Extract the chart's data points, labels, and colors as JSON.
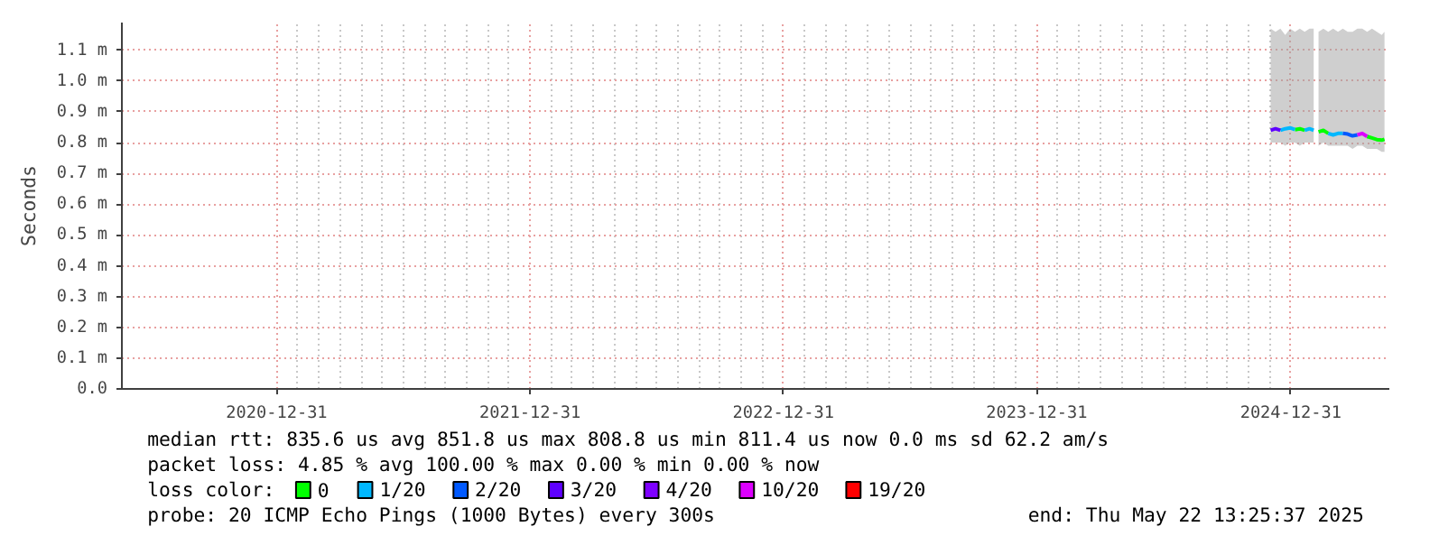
{
  "chart_data": {
    "type": "line",
    "ylabel": "Seconds",
    "legend_title": "loss color:",
    "legend": "bottom",
    "grid": true,
    "marker": "none",
    "line_style": "solid",
    "xlim": [
      "2020-05-22",
      "2025-05-22"
    ],
    "xticks": [
      "2020-12-31",
      "2021-12-31",
      "2022-12-31",
      "2023-12-31",
      "2024-12-31"
    ],
    "ylim": [
      0,
      1.19
    ],
    "yticks": [
      {
        "value": 0,
        "label": "0.0"
      },
      {
        "value": 0.1,
        "label": "0.1 m"
      },
      {
        "value": 0.2,
        "label": "0.2 m"
      },
      {
        "value": 0.3,
        "label": "0.3 m"
      },
      {
        "value": 0.4,
        "label": "0.4 m"
      },
      {
        "value": 0.5,
        "label": "0.5 m"
      },
      {
        "value": 0.6,
        "label": "0.6 m"
      },
      {
        "value": 0.7,
        "label": "0.7 m"
      },
      {
        "value": 0.8,
        "label": "0.8 m"
      },
      {
        "value": 0.9,
        "label": "0.9 m"
      },
      {
        "value": 1.0,
        "label": "1.0 m"
      },
      {
        "value": 1.1,
        "label": "1.1 m"
      }
    ],
    "series": [
      {
        "name": "0",
        "color": "#00ff00",
        "x": [
          "2024-12-02",
          "2024-12-09",
          "2024-12-16",
          "2024-12-23",
          "2024-12-30",
          "2025-01-06",
          "2025-01-13",
          "2025-01-20",
          "2025-01-27",
          "2025-02-02",
          "2025-02-05",
          "2025-02-09",
          "2025-02-16",
          "2025-02-23",
          "2025-03-02",
          "2025-03-09",
          "2025-03-16",
          "2025-03-23",
          "2025-03-30",
          "2025-04-06",
          "2025-04-13",
          "2025-04-20",
          "2025-04-27",
          "2025-05-04",
          "2025-05-11",
          "2025-05-15"
        ],
        "values": [
          null,
          null,
          null,
          null,
          null,
          0.842,
          0.845,
          0.84,
          null,
          null,
          null,
          0.835,
          0.84,
          0.83,
          null,
          null,
          null,
          null,
          null,
          null,
          null,
          0.82,
          0.815,
          0.81,
          0.808,
          0.811
        ],
        "lower": [
          0.8,
          0.8,
          0.8,
          0.79,
          0.8,
          0.8,
          0.79,
          0.8,
          0.8,
          0.8,
          null,
          0.79,
          0.8,
          0.79,
          0.79,
          0.79,
          0.79,
          0.79,
          0.78,
          0.79,
          0.79,
          0.78,
          0.78,
          0.78,
          0.77,
          0.77
        ],
        "upper": [
          1.17,
          1.16,
          1.17,
          1.15,
          1.17,
          1.16,
          1.17,
          1.16,
          1.17,
          1.17,
          null,
          1.16,
          1.17,
          1.16,
          1.17,
          1.16,
          1.17,
          1.16,
          1.16,
          1.17,
          1.17,
          1.16,
          1.17,
          1.16,
          1.15,
          1.16
        ]
      },
      {
        "name": "1/20",
        "color": "#00b8ff",
        "x": [
          "2024-12-16",
          "2024-12-23",
          "2024-12-30",
          "2025-01-06",
          "2025-01-07",
          "2025-01-20",
          "2025-01-27",
          "2025-02-02",
          "2025-02-03",
          "2025-02-23",
          "2025-03-02",
          "2025-03-09",
          "2025-03-16"
        ],
        "values": [
          0.84,
          0.845,
          0.848,
          0.842,
          null,
          0.84,
          0.845,
          0.84,
          null,
          0.83,
          0.825,
          0.83,
          0.83
        ]
      },
      {
        "name": "2/20",
        "color": "#0059ff",
        "x": [
          "2025-03-16",
          "2025-03-23",
          "2025-03-30",
          "2025-04-06"
        ],
        "values": [
          0.83,
          0.828,
          0.822,
          0.825
        ]
      },
      {
        "name": "3/20",
        "color": "#5e00ff",
        "x": [
          "2024-12-02",
          "2024-12-09",
          "2024-12-16"
        ],
        "values": [
          0.84,
          0.845,
          0.84
        ]
      },
      {
        "name": "4/20",
        "color": "#7e00ff"
      },
      {
        "name": "10/20",
        "color": "#dd00ff",
        "x": [
          "2025-04-06",
          "2025-04-13",
          "2025-04-20"
        ],
        "values": [
          0.825,
          0.83,
          0.82
        ]
      },
      {
        "name": "19/20",
        "color": "#ff0000"
      }
    ],
    "annotations": [
      "median rtt:  835.6 us avg  851.8 us max  808.8 us min  811.4 us now  0.0 ms sd  62.2   am/s",
      "packet loss: 4.85 % avg  100.00 % max  0.00 % min  0.00 % now",
      "probe:       20 ICMP Echo Pings (1000 Bytes) every 300s",
      "end: Thu May 22 13:25:37 2025"
    ]
  }
}
